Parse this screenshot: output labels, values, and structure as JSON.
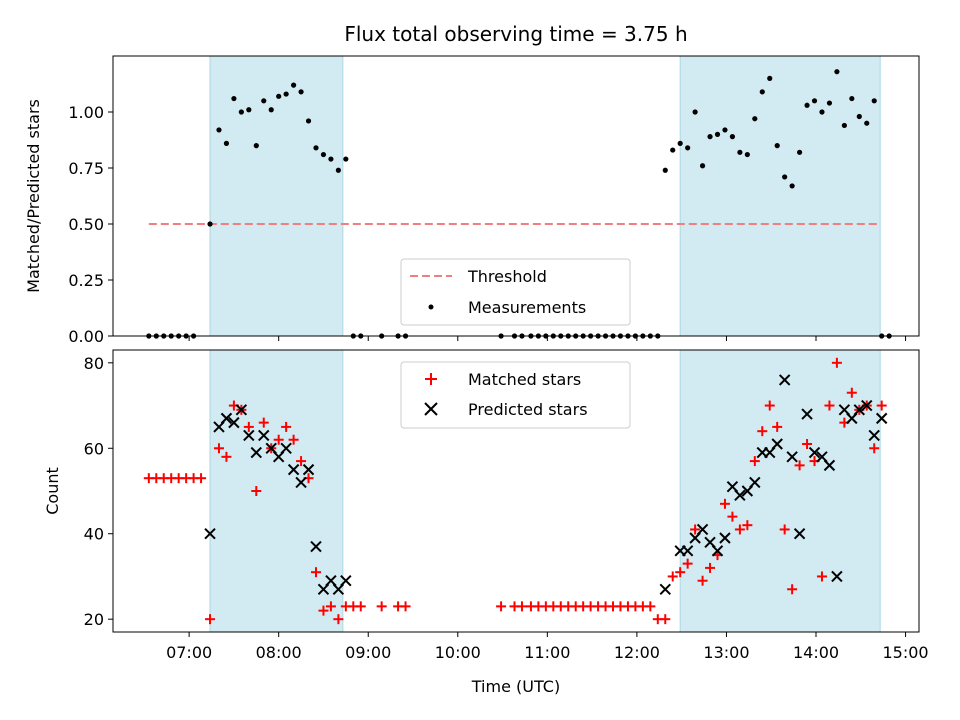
{
  "chart_data": [
    {
      "type": "scatter",
      "title": "Flux total observing time = 3.75 h",
      "xlabel": "",
      "ylabel": "Matched/Predicted stars",
      "xlim": [
        "06:09",
        "15:09"
      ],
      "ylim": [
        0,
        1.25
      ],
      "yticks": [
        "0.00",
        "0.25",
        "0.50",
        "0.75",
        "1.00"
      ],
      "xtick_labels": [],
      "shaded_intervals": [
        [
          "07:14",
          "08:43"
        ],
        [
          "12:29",
          "14:43"
        ]
      ],
      "shade_color": "#add8e6",
      "legend": {
        "location": "lower-center",
        "entries": [
          "Threshold",
          "Measurements"
        ]
      },
      "threshold": {
        "name": "Threshold",
        "value": 0.5,
        "x_start": "06:33",
        "x_end": "14:43",
        "color": "#f08080",
        "style": "dashed"
      },
      "series": [
        {
          "name": "Measurements",
          "marker": "dot",
          "color": "#000000",
          "x": [
            "06:33",
            "06:38",
            "06:43",
            "06:48",
            "06:53",
            "06:58",
            "07:03",
            "07:14",
            "07:20",
            "07:25",
            "07:30",
            "07:35",
            "07:40",
            "07:45",
            "07:50",
            "07:55",
            "08:00",
            "08:05",
            "08:10",
            "08:15",
            "08:20",
            "08:25",
            "08:30",
            "08:35",
            "08:40",
            "08:45",
            "08:50",
            "08:55",
            "09:09",
            "09:20",
            "09:25",
            "10:29",
            "10:38",
            "10:43",
            "10:49",
            "10:54",
            "10:59",
            "11:04",
            "11:09",
            "11:14",
            "11:19",
            "11:24",
            "11:29",
            "11:34",
            "11:39",
            "11:44",
            "11:49",
            "11:54",
            "11:59",
            "12:04",
            "12:09",
            "12:14",
            "12:19",
            "12:24",
            "12:29",
            "12:34",
            "12:39",
            "12:44",
            "12:49",
            "12:54",
            "12:59",
            "13:04",
            "13:09",
            "13:14",
            "13:19",
            "13:24",
            "13:29",
            "13:34",
            "13:39",
            "13:44",
            "13:49",
            "13:54",
            "13:59",
            "14:04",
            "14:09",
            "14:14",
            "14:19",
            "14:24",
            "14:29",
            "14:34",
            "14:39",
            "14:44",
            "14:49"
          ],
          "y": [
            0,
            0,
            0,
            0,
            0,
            0,
            0,
            0.5,
            0.92,
            0.86,
            1.06,
            1.0,
            1.01,
            0.85,
            1.05,
            1.01,
            1.07,
            1.08,
            1.12,
            1.09,
            0.96,
            0.84,
            0.81,
            0.79,
            0.74,
            0.79,
            0,
            0,
            0,
            0,
            0,
            0,
            0,
            0,
            0,
            0,
            0,
            0,
            0,
            0,
            0,
            0,
            0,
            0,
            0,
            0,
            0,
            0,
            0,
            0,
            0,
            0,
            0.74,
            0.83,
            0.86,
            0.84,
            1.0,
            0.76,
            0.89,
            0.9,
            0.92,
            0.89,
            0.82,
            0.81,
            0.97,
            1.09,
            1.15,
            0.85,
            0.71,
            0.67,
            0.82,
            1.03,
            1.05,
            1.0,
            1.04,
            1.18,
            0.94,
            1.06,
            0.98,
            0.95,
            1.05,
            0,
            0
          ]
        }
      ]
    },
    {
      "type": "scatter",
      "title": "",
      "xlabel": "Time (UTC)",
      "ylabel": "Count",
      "xlim": [
        "06:09",
        "15:09"
      ],
      "ylim": [
        17,
        83
      ],
      "yticks": [
        "20",
        "40",
        "60",
        "80"
      ],
      "xtick_labels": [
        "07:00",
        "08:00",
        "09:00",
        "10:00",
        "11:00",
        "12:00",
        "13:00",
        "14:00",
        "15:00"
      ],
      "shaded_intervals": [
        [
          "07:14",
          "08:43"
        ],
        [
          "12:29",
          "14:43"
        ]
      ],
      "shade_color": "#add8e6",
      "legend": {
        "location": "upper-center",
        "entries": [
          "Matched stars",
          "Predicted stars"
        ]
      },
      "series": [
        {
          "name": "Matched stars",
          "marker": "plus",
          "color": "#ff0000",
          "x": [
            "06:33",
            "06:38",
            "06:43",
            "06:48",
            "06:53",
            "06:58",
            "07:03",
            "07:08",
            "07:14",
            "07:20",
            "07:25",
            "07:30",
            "07:35",
            "07:40",
            "07:45",
            "07:50",
            "07:55",
            "08:00",
            "08:05",
            "08:10",
            "08:15",
            "08:20",
            "08:25",
            "08:30",
            "08:35",
            "08:40",
            "08:45",
            "08:50",
            "08:55",
            "09:09",
            "09:20",
            "09:25",
            "10:29",
            "10:38",
            "10:43",
            "10:49",
            "10:54",
            "10:59",
            "11:04",
            "11:09",
            "11:14",
            "11:19",
            "11:24",
            "11:29",
            "11:34",
            "11:39",
            "11:44",
            "11:49",
            "11:54",
            "11:59",
            "12:04",
            "12:09",
            "12:14",
            "12:19",
            "12:24",
            "12:29",
            "12:34",
            "12:39",
            "12:44",
            "12:49",
            "12:54",
            "12:59",
            "13:04",
            "13:09",
            "13:14",
            "13:19",
            "13:24",
            "13:29",
            "13:34",
            "13:39",
            "13:44",
            "13:49",
            "13:54",
            "13:59",
            "14:04",
            "14:09",
            "14:14",
            "14:19",
            "14:24",
            "14:29",
            "14:34",
            "14:39",
            "14:44"
          ],
          "y": [
            53,
            53,
            53,
            53,
            53,
            53,
            53,
            53,
            20,
            60,
            58,
            70,
            69,
            65,
            50,
            66,
            60,
            62,
            65,
            62,
            57,
            53,
            31,
            22,
            23,
            20,
            23,
            23,
            23,
            23,
            23,
            23,
            23,
            23,
            23,
            23,
            23,
            23,
            23,
            23,
            23,
            23,
            23,
            23,
            23,
            23,
            23,
            23,
            23,
            23,
            23,
            23,
            20,
            20,
            30,
            31,
            33,
            41,
            29,
            32,
            35,
            47,
            44,
            41,
            42,
            57,
            64,
            70,
            65,
            41,
            27,
            56,
            61,
            57,
            30,
            70,
            80,
            66,
            73,
            69,
            70,
            60,
            70
          ]
        },
        {
          "name": "Predicted stars",
          "marker": "x",
          "color": "#000000",
          "x": [
            "07:14",
            "07:20",
            "07:25",
            "07:30",
            "07:35",
            "07:40",
            "07:45",
            "07:50",
            "07:55",
            "08:00",
            "08:05",
            "08:10",
            "08:15",
            "08:20",
            "08:25",
            "08:30",
            "08:35",
            "08:40",
            "08:45",
            "12:19",
            "12:29",
            "12:34",
            "12:39",
            "12:44",
            "12:49",
            "12:54",
            "12:59",
            "13:04",
            "13:09",
            "13:14",
            "13:19",
            "13:24",
            "13:29",
            "13:34",
            "13:39",
            "13:44",
            "13:49",
            "13:54",
            "13:59",
            "14:04",
            "14:09",
            "14:14",
            "14:19",
            "14:24",
            "14:29",
            "14:34",
            "14:39",
            "14:44"
          ],
          "y": [
            40,
            65,
            67,
            66,
            69,
            63,
            59,
            63,
            60,
            58,
            60,
            55,
            52,
            55,
            37,
            27,
            29,
            27,
            29,
            27,
            36,
            36,
            39,
            41,
            38,
            36,
            39,
            51,
            49,
            50,
            52,
            59,
            59,
            61,
            76,
            58,
            40,
            68,
            59,
            58,
            56,
            30,
            69,
            67,
            69,
            70,
            63,
            67
          ]
        }
      ]
    }
  ]
}
